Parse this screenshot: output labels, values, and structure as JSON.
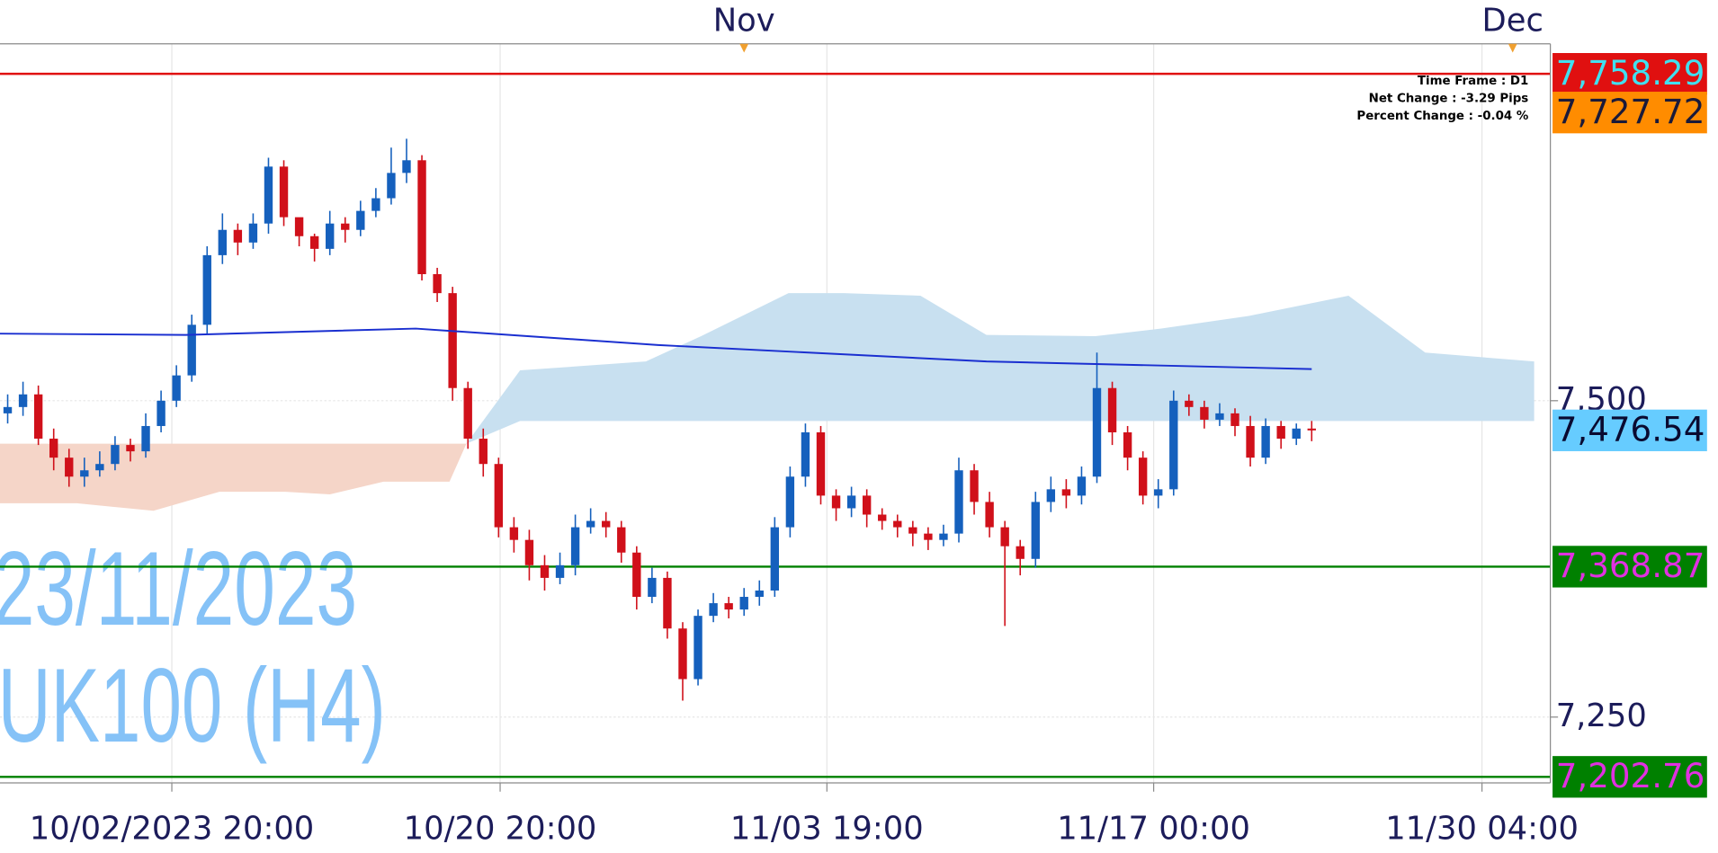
{
  "chart_data": {
    "type": "candlestick",
    "up_color": "#1560bd",
    "down_color": "#d0101a",
    "x": [
      0,
      1,
      2,
      3,
      4,
      5,
      6,
      7,
      8,
      9,
      10,
      11,
      12,
      13,
      14,
      15,
      16,
      17,
      18,
      19,
      20,
      21,
      22,
      23,
      24,
      25,
      26,
      27,
      28,
      29,
      30,
      31,
      32,
      33,
      34,
      35,
      36,
      37,
      38,
      39,
      40,
      41,
      42,
      43,
      44,
      45,
      46,
      47,
      48,
      49,
      50,
      51,
      52,
      53,
      54,
      55,
      56,
      57,
      58,
      59,
      60,
      61,
      62,
      63,
      64,
      65,
      66,
      67,
      68,
      69,
      70,
      71,
      72,
      73,
      74,
      75,
      76,
      77,
      78,
      79,
      80,
      81,
      82,
      83,
      84,
      85
    ],
    "open": [
      7490,
      7495,
      7505,
      7470,
      7455,
      7440,
      7445,
      7450,
      7465,
      7460,
      7480,
      7500,
      7520,
      7560,
      7615,
      7635,
      7625,
      7640,
      7685,
      7645,
      7630,
      7620,
      7640,
      7635,
      7650,
      7660,
      7680,
      7690,
      7600,
      7585,
      7510,
      7470,
      7450,
      7400,
      7390,
      7370,
      7360,
      7370,
      7400,
      7405,
      7400,
      7380,
      7345,
      7360,
      7320,
      7280,
      7330,
      7340,
      7335,
      7345,
      7350,
      7400,
      7440,
      7475,
      7425,
      7415,
      7425,
      7410,
      7405,
      7400,
      7395,
      7390,
      7395,
      7445,
      7420,
      7400,
      7385,
      7375,
      7420,
      7430,
      7425,
      7440,
      7510,
      7475,
      7455,
      7425,
      7430,
      7500,
      7495,
      7485,
      7490,
      7480,
      7455,
      7480,
      7470,
      7478
    ],
    "high": [
      7505,
      7515,
      7512,
      7478,
      7462,
      7455,
      7460,
      7472,
      7470,
      7490,
      7508,
      7528,
      7568,
      7622,
      7648,
      7640,
      7648,
      7692,
      7690,
      7640,
      7632,
      7650,
      7645,
      7658,
      7668,
      7700,
      7707,
      7694,
      7605,
      7590,
      7515,
      7478,
      7455,
      7408,
      7398,
      7378,
      7380,
      7410,
      7415,
      7412,
      7405,
      7385,
      7368,
      7365,
      7325,
      7335,
      7348,
      7345,
      7352,
      7358,
      7408,
      7448,
      7482,
      7480,
      7430,
      7432,
      7430,
      7415,
      7410,
      7405,
      7400,
      7402,
      7455,
      7450,
      7428,
      7405,
      7390,
      7428,
      7440,
      7438,
      7448,
      7538,
      7515,
      7480,
      7460,
      7438,
      7508,
      7505,
      7500,
      7498,
      7494,
      7488,
      7486,
      7484,
      7482,
      7484
    ],
    "low": [
      7482,
      7488,
      7465,
      7445,
      7432,
      7432,
      7440,
      7445,
      7452,
      7455,
      7475,
      7495,
      7515,
      7552,
      7608,
      7615,
      7620,
      7632,
      7638,
      7622,
      7610,
      7615,
      7625,
      7630,
      7645,
      7655,
      7672,
      7595,
      7578,
      7500,
      7462,
      7440,
      7392,
      7380,
      7358,
      7350,
      7355,
      7362,
      7395,
      7392,
      7372,
      7335,
      7340,
      7312,
      7263,
      7275,
      7325,
      7328,
      7330,
      7338,
      7345,
      7392,
      7432,
      7418,
      7405,
      7408,
      7400,
      7398,
      7392,
      7385,
      7382,
      7385,
      7388,
      7410,
      7392,
      7322,
      7362,
      7368,
      7412,
      7415,
      7418,
      7435,
      7465,
      7445,
      7418,
      7415,
      7425,
      7488,
      7478,
      7480,
      7472,
      7448,
      7450,
      7462,
      7465,
      7468
    ],
    "close": [
      7495,
      7505,
      7470,
      7455,
      7440,
      7445,
      7450,
      7465,
      7460,
      7480,
      7500,
      7520,
      7560,
      7615,
      7635,
      7625,
      7640,
      7685,
      7645,
      7630,
      7620,
      7640,
      7635,
      7650,
      7660,
      7680,
      7690,
      7600,
      7585,
      7510,
      7470,
      7450,
      7400,
      7390,
      7370,
      7360,
      7370,
      7400,
      7405,
      7400,
      7380,
      7345,
      7360,
      7320,
      7280,
      7330,
      7340,
      7335,
      7345,
      7350,
      7400,
      7440,
      7475,
      7425,
      7415,
      7425,
      7410,
      7405,
      7400,
      7395,
      7390,
      7395,
      7445,
      7420,
      7400,
      7385,
      7375,
      7420,
      7430,
      7425,
      7440,
      7510,
      7475,
      7455,
      7425,
      7430,
      7500,
      7495,
      7485,
      7490,
      7480,
      7455,
      7480,
      7470,
      7478,
      7476.54
    ],
    "moving_average": {
      "color": "#1a2fd0",
      "x": [
        -0.5,
        11.6,
        26.6,
        42.4,
        63.8,
        85
      ],
      "values": [
        7553,
        7552,
        7557,
        7544,
        7531,
        7525
      ]
    },
    "cloud": [
      {
        "color": "#f5d5c8",
        "x": [
          -0.5,
          4.5,
          9.5,
          13.8,
          18.1,
          21,
          24.5,
          28.8,
          29.9
        ],
        "upper": [
          7466,
          7466,
          7466,
          7466,
          7466,
          7466,
          7466,
          7466,
          7466
        ],
        "lower": [
          7419,
          7419,
          7413,
          7428,
          7428,
          7426,
          7436,
          7436,
          7466
        ]
      },
      {
        "color": "#c8e0f0",
        "x": [
          29.9,
          33.4,
          41.6,
          45.2,
          50.9,
          54.5,
          59.5,
          63.8,
          70.9,
          75.2,
          80.9,
          87.4,
          92.4,
          99.5
        ],
        "upper": [
          7466,
          7524,
          7531,
          7551,
          7585,
          7585,
          7583,
          7552,
          7551,
          7557,
          7567,
          7583,
          7538,
          7531
        ],
        "lower": [
          7466,
          7484,
          7484,
          7484,
          7484,
          7484,
          7484,
          7484,
          7484,
          7484,
          7484,
          7484,
          7484,
          7484
        ]
      }
    ],
    "levels": [
      {
        "value": 7758.29,
        "label": "7,758.29",
        "line": true,
        "color": "#e01010",
        "text_color": "#40e0f0"
      },
      {
        "value": 7727.72,
        "label": "7,727.72",
        "line": false,
        "color": "#ff8c00",
        "text_color": "#1a1a3a"
      },
      {
        "value": 7476.54,
        "label": "7,476.54",
        "line": false,
        "color": "#66ccff",
        "text_color": "#0a0a30"
      },
      {
        "value": 7368.87,
        "label": "7,368.87",
        "line": true,
        "color": "#008000",
        "text_color": "#e030e0"
      },
      {
        "value": 7202.76,
        "label": "7,202.76",
        "line": true,
        "color": "#008000",
        "text_color": "#e030e0"
      }
    ],
    "xlim": [
      -0.5,
      100.2
    ],
    "ylim": [
      7198,
      7782
    ],
    "xticks": [
      {
        "value": 10.7,
        "label": "10/02/2023 20:00"
      },
      {
        "value": 32.1,
        "label": "10/20 20:00"
      },
      {
        "value": 53.4,
        "label": "11/03 19:00"
      },
      {
        "value": 74.7,
        "label": "11/17 00:00"
      },
      {
        "value": 96.1,
        "label": "11/30 04:00"
      }
    ],
    "top_ticks": [
      {
        "value": 48,
        "label": "Nov"
      },
      {
        "value": 98.1,
        "label": "Dec"
      }
    ],
    "yticks": [
      {
        "value": 7250,
        "label": "7,250"
      },
      {
        "value": 7500,
        "label": "7,500"
      }
    ],
    "grid": true,
    "info": [
      "Time Frame : D1",
      "Net Change : -3.29 Pips",
      "Percent Change : -0.04 %"
    ],
    "watermark": [
      "23/11/2023",
      "UK100 (H4)"
    ]
  }
}
